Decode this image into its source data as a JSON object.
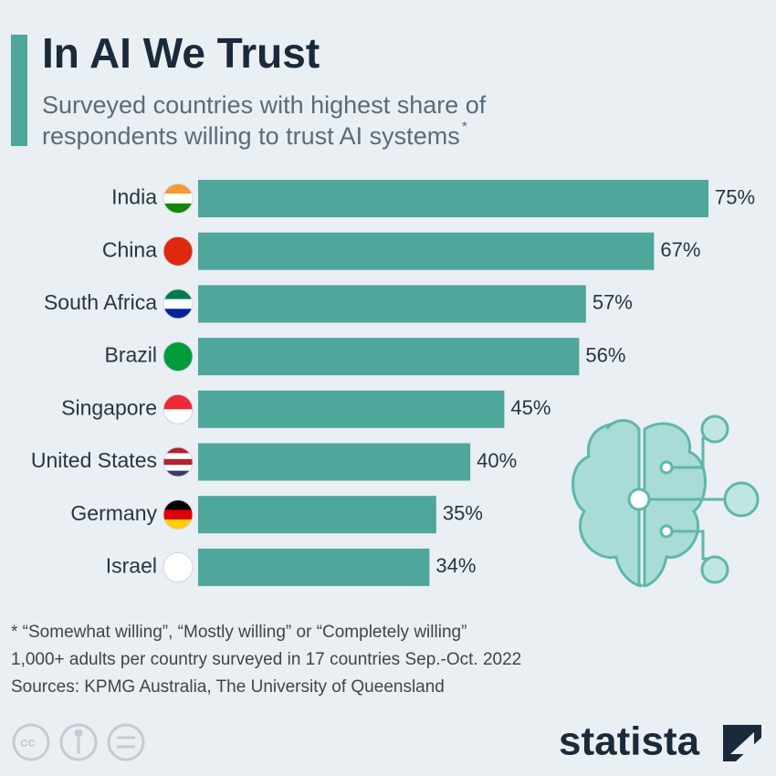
{
  "chart_data": {
    "type": "bar",
    "orientation": "horizontal",
    "title": "In AI We Trust",
    "subtitle": [
      "Surveyed countries with highest share of",
      "respondents willing to trust AI systems"
    ],
    "subtitle_marker": "*",
    "categories": [
      "India",
      "China",
      "South Africa",
      "Brazil",
      "Singapore",
      "United States",
      "Germany",
      "Israel"
    ],
    "values": [
      75,
      67,
      57,
      56,
      45,
      40,
      35,
      34
    ],
    "value_labels": [
      "75%",
      "67%",
      "57%",
      "56%",
      "45%",
      "40%",
      "35%",
      "34%"
    ],
    "color": "#4fa69a",
    "notes": [
      "* “Somewhat willing”, “Mostly willing” or “Completely willing”",
      "1,000+ adults per country surveyed in 17 countries Sep.-Oct. 2022",
      "Sources: KPMG Australia, The University of Queensland"
    ],
    "brand": "statista"
  }
}
